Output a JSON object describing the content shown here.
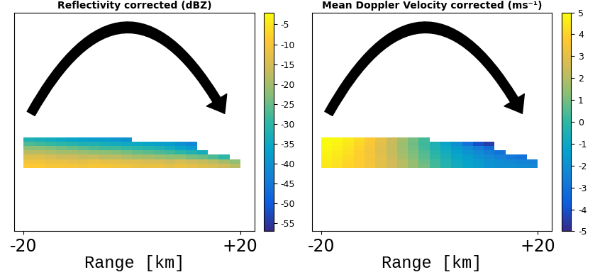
{
  "chart_data": [
    {
      "type": "heatmap",
      "title": "Reflectivity corrected (dBZ)",
      "xlabel": "Range [km]",
      "xlim": [
        -21.7,
        22.6
      ],
      "xticks": [
        -20,
        {
          "value": 20,
          "label": "+20"
        }
      ],
      "ylim": [
        0,
        10
      ],
      "tick_labels": "x",
      "x_edges": [
        -20,
        -18,
        -16,
        -14,
        -12,
        -10,
        -8,
        -6,
        -4,
        -2,
        0,
        2,
        4,
        6,
        8,
        10,
        12,
        14,
        16,
        18,
        20
      ],
      "y_edges": [
        2.9,
        3.1,
        3.3,
        3.5,
        3.7,
        3.9,
        4.1,
        4.3
      ],
      "cells": [
        [
          -9,
          -9,
          -10,
          -10,
          -10,
          -11,
          -10,
          -10,
          -11,
          -11,
          -12,
          -12,
          -12,
          -13,
          -12,
          -13,
          -14,
          -15,
          -16,
          -18
        ],
        [
          -11,
          -11,
          -12,
          -12,
          -13,
          -13,
          -12,
          -13,
          -13,
          -14,
          -14,
          -15,
          -15,
          -16,
          -15,
          -16,
          -17,
          -18,
          -20,
          -22
        ],
        [
          -14,
          -14,
          -15,
          -16,
          -16,
          -17,
          -17,
          -18,
          -18,
          -19,
          -20,
          -20,
          -21,
          -22,
          -22,
          -24,
          -25,
          -27,
          -30,
          null
        ],
        [
          -18,
          -18,
          -19,
          -20,
          -20,
          -21,
          -22,
          -22,
          -23,
          -24,
          -25,
          -26,
          -27,
          -28,
          -30,
          -32,
          -34,
          null,
          null,
          null
        ],
        [
          -22,
          -22,
          -23,
          -24,
          -25,
          -26,
          -27,
          -28,
          -28,
          -29,
          -30,
          -31,
          -32,
          -34,
          -36,
          -38,
          null,
          null,
          null,
          null
        ],
        [
          -27,
          -28,
          -29,
          -30,
          -31,
          -32,
          -32,
          -33,
          -34,
          -35,
          -35,
          -36,
          -37,
          -38,
          -40,
          -42,
          null,
          null,
          null,
          null
        ],
        [
          -32,
          -33,
          -34,
          -35,
          -36,
          -37,
          -38,
          -38,
          -39,
          -40,
          null,
          null,
          null,
          null,
          null,
          null,
          null,
          null,
          null,
          null
        ]
      ],
      "colorbar_range": [
        -57,
        -2
      ],
      "colorbar_ticks": [
        -55,
        -50,
        -45,
        -40,
        -35,
        -30,
        -25,
        -20,
        -15,
        -10,
        -5
      ]
    },
    {
      "type": "heatmap",
      "title": "Mean Doppler Velocity corrected (ms⁻¹)",
      "xlabel": "Range [km]",
      "xlim": [
        -21.7,
        22.6
      ],
      "xticks": [
        -20,
        {
          "value": 20,
          "label": "+20"
        }
      ],
      "ylim": [
        0,
        10
      ],
      "tick_labels": "x",
      "x_edges": [
        -20,
        -18,
        -16,
        -14,
        -12,
        -10,
        -8,
        -6,
        -4,
        -2,
        0,
        2,
        4,
        6,
        8,
        10,
        12,
        14,
        16,
        18,
        20
      ],
      "y_edges": [
        2.9,
        3.1,
        3.3,
        3.5,
        3.7,
        3.9,
        4.1,
        4.3
      ],
      "cells": [
        [
          4.5,
          4.3,
          4,
          3.8,
          3.5,
          3,
          2.5,
          2,
          1.5,
          1,
          0.3,
          -0.3,
          -0.8,
          -1.2,
          -1.5,
          -1.8,
          -2,
          -2,
          -2.2,
          -2.3
        ],
        [
          4.6,
          4.4,
          4.1,
          3.8,
          3.4,
          3,
          2.5,
          2,
          1.5,
          0.8,
          0.2,
          -0.4,
          -0.9,
          -1.3,
          -1.6,
          -1.9,
          -2.1,
          -2.3,
          -2.4,
          -2.5
        ],
        [
          4.7,
          4.5,
          4.2,
          3.9,
          3.5,
          3,
          2.4,
          1.8,
          1.2,
          0.6,
          0,
          -0.6,
          -1.1,
          -1.5,
          -1.9,
          -2.2,
          -2.5,
          -2.8,
          -3,
          null
        ],
        [
          4.8,
          4.6,
          4.3,
          3.9,
          3.4,
          2.9,
          2.3,
          1.7,
          1.1,
          0.5,
          -0.2,
          -0.8,
          -1.3,
          -1.8,
          -2.2,
          -2.6,
          -3,
          null,
          null,
          null
        ],
        [
          4.9,
          4.7,
          4.4,
          4,
          3.5,
          2.9,
          2.3,
          1.6,
          1,
          0.3,
          -0.4,
          -1,
          -1.6,
          -2.1,
          -2.6,
          -3.2,
          null,
          null,
          null,
          null
        ],
        [
          5,
          4.8,
          4.5,
          4.1,
          3.6,
          3,
          2.3,
          1.6,
          0.9,
          0.2,
          -0.5,
          -1.2,
          -2,
          -3,
          -4,
          -4.5,
          null,
          null,
          null,
          null
        ],
        [
          5,
          4.9,
          4.6,
          4.2,
          3.7,
          3.1,
          2.4,
          1.7,
          1,
          0.3,
          null,
          null,
          null,
          null,
          null,
          null,
          null,
          null,
          null,
          null
        ]
      ],
      "colorbar_range": [
        -5,
        5
      ],
      "colorbar_ticks": [
        -5,
        -4,
        -3,
        -2,
        -1,
        0,
        1,
        2,
        3,
        4,
        5
      ]
    }
  ]
}
